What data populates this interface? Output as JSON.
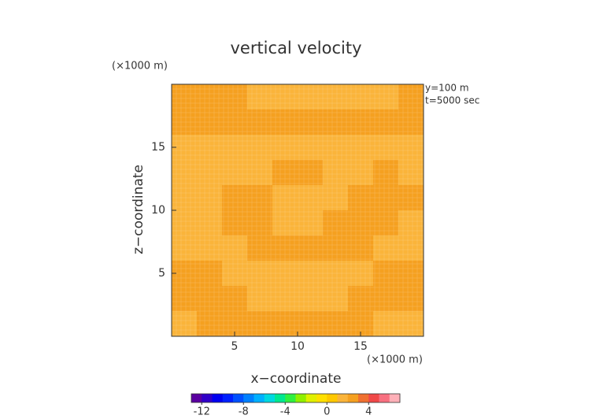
{
  "chart_data": {
    "type": "contour",
    "title": "vertical velocity",
    "x_label": "x−coordinate",
    "y_label": "z−coordinate",
    "x_unit": "(×1000 m)",
    "y_unit": "(×1000 m)",
    "annotations": [
      "y=100 m",
      "t=5000 sec"
    ],
    "xlim": [
      0,
      20
    ],
    "ylim": [
      0,
      20
    ],
    "xticks": [
      5,
      10,
      15
    ],
    "yticks": [
      5,
      10,
      15
    ],
    "z": [
      [
        2.5,
        2.5,
        2.5,
        1.5,
        1.5,
        1.5,
        1.5,
        1.5,
        1.5,
        2.5
      ],
      [
        2.5,
        2.5,
        2.5,
        2.5,
        2.5,
        2.5,
        2.5,
        2.5,
        2.5,
        2.5
      ],
      [
        1.5,
        1.5,
        1.5,
        1.5,
        1.5,
        1.5,
        1.5,
        1.5,
        1.5,
        1.5
      ],
      [
        1.5,
        1.5,
        1.5,
        1.5,
        2.5,
        2.5,
        1.5,
        1.5,
        2.5,
        1.5
      ],
      [
        1.5,
        1.5,
        2.5,
        2.5,
        1.5,
        1.5,
        1.5,
        2.5,
        2.5,
        2.5
      ],
      [
        1.5,
        1.5,
        2.5,
        2.5,
        1.5,
        1.5,
        2.5,
        2.5,
        2.5,
        1.5
      ],
      [
        1.5,
        1.5,
        1.5,
        2.5,
        2.5,
        2.5,
        2.5,
        2.5,
        1.5,
        1.5
      ],
      [
        2.5,
        2.5,
        1.5,
        1.5,
        1.5,
        1.5,
        1.5,
        1.5,
        2.5,
        2.5
      ],
      [
        2.5,
        2.5,
        2.5,
        1.5,
        1.5,
        1.5,
        1.5,
        2.5,
        2.5,
        2.5
      ],
      [
        1.5,
        2.5,
        2.5,
        2.5,
        2.5,
        2.5,
        2.5,
        2.5,
        1.5,
        1.5
      ]
    ],
    "clim": [
      -13,
      7
    ],
    "colors": [
      "#5a00a0",
      "#3000c8",
      "#0000f0",
      "#0020ff",
      "#0050ff",
      "#0080ff",
      "#00b0ff",
      "#00d8e0",
      "#00e890",
      "#30f040",
      "#90f000",
      "#e0f000",
      "#ffe000",
      "#ffc800",
      "#fab43a",
      "#f5a020",
      "#f07030",
      "#f04848",
      "#f87080",
      "#ffb0b8"
    ],
    "cticks": [
      -12,
      -8,
      -4,
      0,
      4
    ]
  }
}
